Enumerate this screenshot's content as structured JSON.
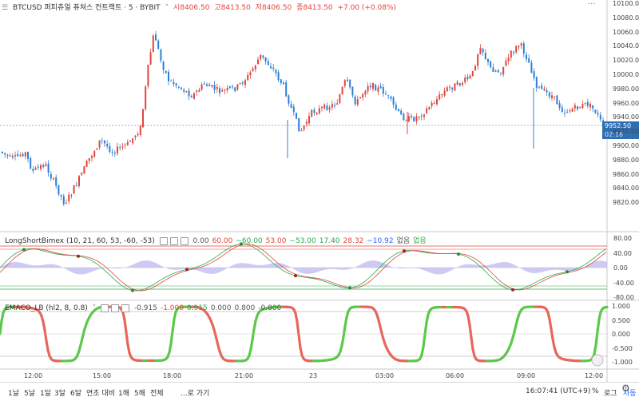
{
  "header": {
    "symbol": "BTCUSD 퍼피츄얼 퓨쳐스 컨트랙트 · 5 · BYBIT",
    "open_label": "시",
    "open": "8406.50",
    "high_label": "고",
    "high": "8413.50",
    "low_label": "저",
    "low": "8406.50",
    "close_label": "종",
    "close": "8413.50",
    "change": "+7.00 (+0.08%)"
  },
  "price_axis": {
    "ticks": [
      "10100.00",
      "10080.00",
      "10060.00",
      "10040.00",
      "10020.00",
      "10000.00",
      "9980.00",
      "9960.00",
      "9940.00",
      "9920.00",
      "9900.00",
      "9880.00",
      "9860.00",
      "9840.00",
      "9820.00"
    ],
    "current_price": "9952.50",
    "countdown": "02:18"
  },
  "indicator1": {
    "name": "LongShortBimex (10, 21, 60, 53, -60, -53)",
    "values": [
      {
        "text": "0.00",
        "color": "#555555"
      },
      {
        "text": "60.00",
        "color": "#e0463b"
      },
      {
        "text": "−60.00",
        "color": "#2aa94a"
      },
      {
        "text": "53.00",
        "color": "#e0463b"
      },
      {
        "text": "−53.00",
        "color": "#2aa94a"
      },
      {
        "text": "17.40",
        "color": "#2aa94a"
      },
      {
        "text": "28.32",
        "color": "#e0463b"
      },
      {
        "text": "−10.92",
        "color": "#2962ff"
      },
      {
        "text": "없음",
        "color": "#555555"
      },
      {
        "text": "없음",
        "color": "#2aa94a"
      }
    ],
    "ticks": [
      "80.00",
      "40.00",
      "0.00",
      "-40.00",
      "-80.00"
    ]
  },
  "indicator2": {
    "name": "EMACO_LB (hl2, 8, 0.8)",
    "values": [
      {
        "text": "-0.915",
        "color": "#555555"
      },
      {
        "text": "-1.000",
        "color": "#e0463b"
      },
      {
        "text": "0.915",
        "color": "#2aa94a"
      },
      {
        "text": "0.000",
        "color": "#555555"
      },
      {
        "text": "0.800",
        "color": "#555555"
      },
      {
        "text": "-0.800",
        "color": "#555555"
      }
    ],
    "ticks": [
      "1.000",
      "0.500",
      "0.000",
      "-0.500",
      "-1.000"
    ]
  },
  "time_axis": {
    "ticks": [
      "12:00",
      "15:00",
      "18:00",
      "21:00",
      "23",
      "03:00",
      "06:00",
      "09:00",
      "12:00"
    ]
  },
  "toolbar": {
    "ranges": [
      "1날",
      "5날",
      "1달",
      "3달",
      "6달",
      "연초 대비",
      "1해",
      "5해",
      "전체"
    ],
    "goto": "...로 가기",
    "clock": "16:07:41 (UTC+9)",
    "percent": "%",
    "log": "로그",
    "auto": "자동"
  },
  "colors": {
    "up": "#e0463b",
    "down": "#2d7fd6",
    "osc_up": "#5cc84a",
    "osc_down": "#e8665a",
    "accent": "#2d6fb0"
  }
}
